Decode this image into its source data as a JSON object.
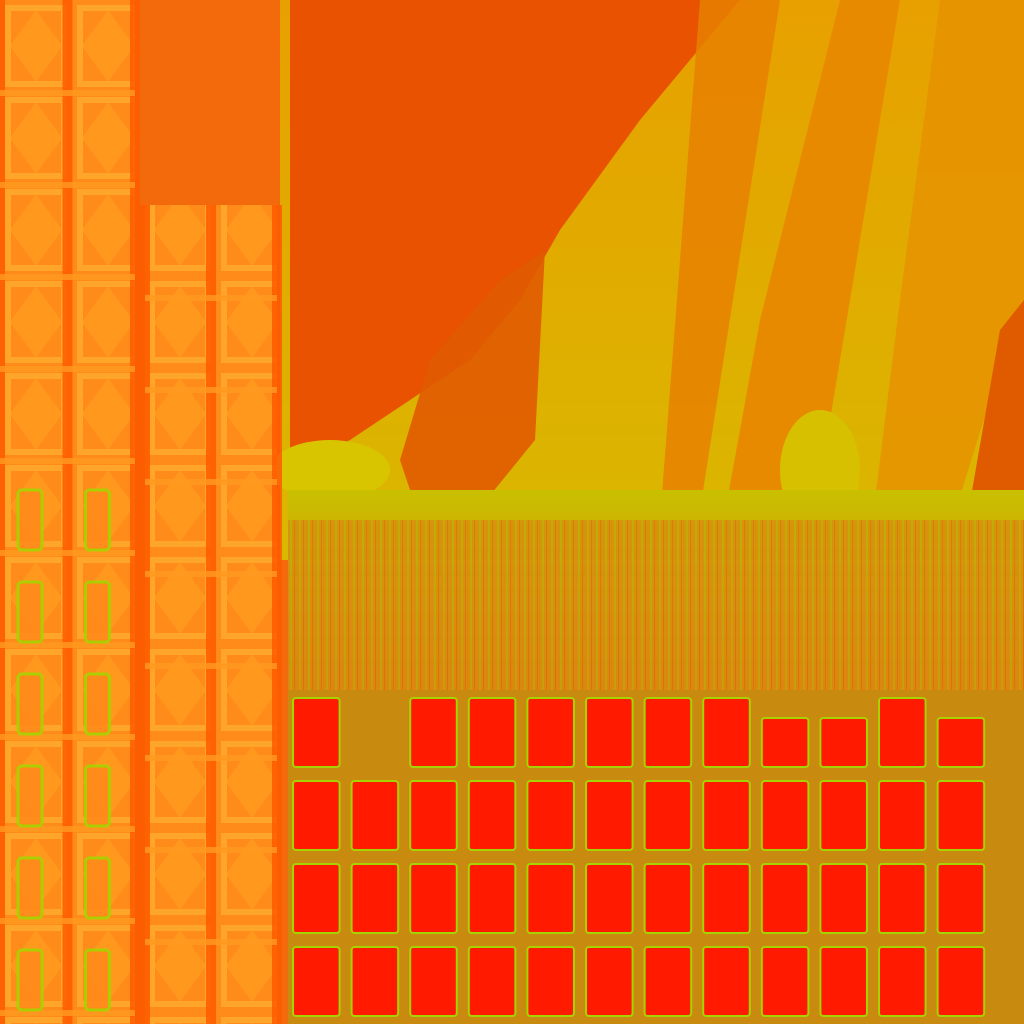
{
  "palette": {
    "background": "#f26a0c",
    "deep_orange": "#e85200",
    "amber": "#e6a000",
    "yellow": "#d9c400",
    "lime": "#a6d400",
    "cell_red": "#ff1a00",
    "tower_orange": "#ff8a1a",
    "column_line": "#ff5a00"
  },
  "grid": {
    "column_count": 12,
    "row_count": 4,
    "missing_top_cells": [
      1
    ],
    "short_columns": [
      8,
      9,
      11
    ]
  },
  "towers": {
    "left_columns": 2,
    "right_columns": 2
  }
}
